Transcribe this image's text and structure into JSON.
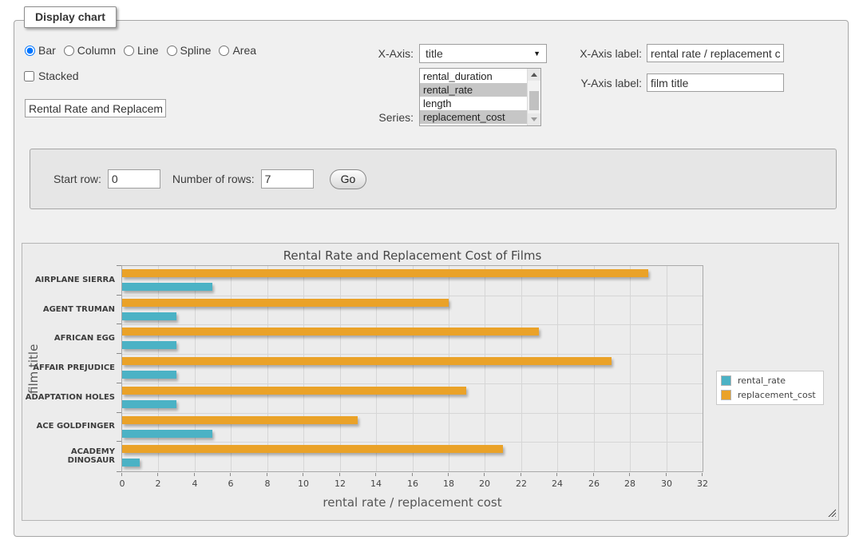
{
  "panel": {
    "legend_label": "Display chart"
  },
  "controls": {
    "chart_types": {
      "options": [
        "Bar",
        "Column",
        "Line",
        "Spline",
        "Area"
      ],
      "selected": "Bar"
    },
    "stacked": {
      "label": "Stacked",
      "checked": false
    },
    "chart_title_input": {
      "value": "Rental Rate and Replacement Cost of Films"
    },
    "x_axis": {
      "label": "X-Axis:",
      "selected": "title"
    },
    "series_select": {
      "label": "Series:",
      "options": [
        "rental_duration",
        "rental_rate",
        "length",
        "replacement_cost"
      ],
      "selected": [
        "rental_rate",
        "replacement_cost"
      ]
    },
    "x_axis_label": {
      "label": "X-Axis label:",
      "value": "rental rate / replacement cost"
    },
    "y_axis_label": {
      "label": "Y-Axis label:",
      "value": "film title"
    }
  },
  "row_controls": {
    "start_row_label": "Start row:",
    "start_row_value": "0",
    "number_of_rows_label": "Number of rows:",
    "number_of_rows_value": "7",
    "go_button_label": "Go"
  },
  "chart_data": {
    "type": "bar",
    "orientation": "horizontal",
    "title": "Rental Rate and Replacement Cost of Films",
    "categories": [
      "AIRPLANE SIERRA",
      "AGENT TRUMAN",
      "AFRICAN EGG",
      "AFFAIR PREJUDICE",
      "ADAPTATION HOLES",
      "ACE GOLDFINGER",
      "ACADEMY DINOSAUR"
    ],
    "series": [
      {
        "name": "rental_rate",
        "color": "#4bb2c5",
        "values": [
          4.99,
          2.99,
          2.99,
          2.99,
          2.99,
          4.99,
          0.99
        ]
      },
      {
        "name": "replacement_cost",
        "color": "#EAA228",
        "values": [
          28.99,
          17.99,
          22.99,
          26.99,
          18.99,
          12.99,
          20.99
        ]
      }
    ],
    "xlabel": "rental rate / replacement cost",
    "ylabel": "film title",
    "xlim": [
      0,
      32
    ],
    "xticks": [
      0,
      2,
      4,
      6,
      8,
      10,
      12,
      14,
      16,
      18,
      20,
      22,
      24,
      26,
      28,
      30,
      32
    ],
    "grid": true,
    "legend_position": "right",
    "colors": {
      "grid_line": "#d6d6d6",
      "plot_border": "#a9a9a9",
      "text": "#555555"
    }
  }
}
